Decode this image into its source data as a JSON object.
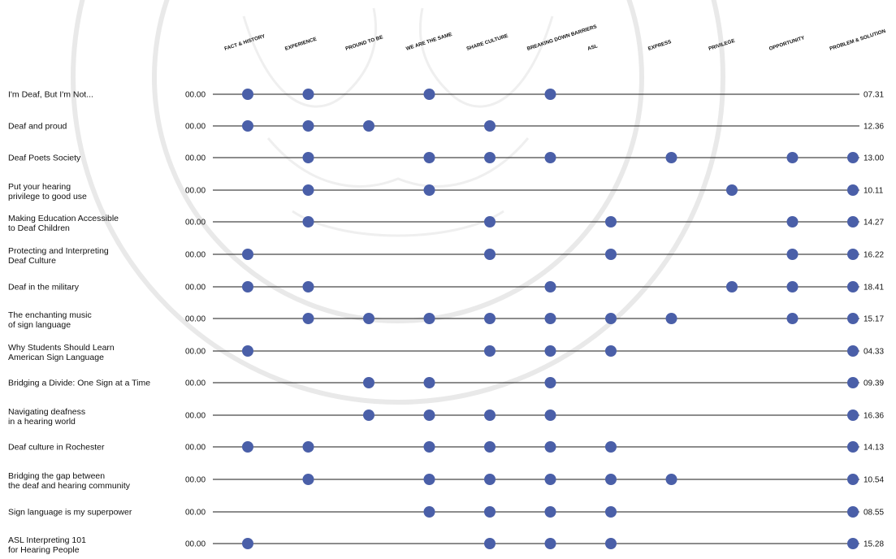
{
  "chart_data": {
    "type": "scatter",
    "columns": [
      "FACT & HISTORY",
      "EXPERIENCE",
      "PROUND TO BE",
      "WE ARE THE SAME",
      "SHARE CULTURE",
      "BREAKING DOWN BARRIERS",
      "ASL",
      "EXPRESS",
      "PRIVILEGE",
      "OPPORTUNITY",
      "PROBLEM & SOLUTION"
    ],
    "start_value": "00.00",
    "marker_color": "#4a5fa8",
    "rows": [
      {
        "title": [
          "I'm Deaf, But I'm Not..."
        ],
        "end": "07.31",
        "points": [
          0,
          1,
          3,
          5
        ]
      },
      {
        "title": [
          "Deaf and proud"
        ],
        "end": "12.36",
        "points": [
          0,
          1,
          2,
          4
        ]
      },
      {
        "title": [
          "Deaf Poets Society"
        ],
        "end": "13.00",
        "points": [
          1,
          3,
          4,
          5,
          7,
          9,
          10
        ]
      },
      {
        "title": [
          "Put your hearing",
          "privilege to good use"
        ],
        "end": "10.11",
        "points": [
          1,
          3,
          8,
          10
        ]
      },
      {
        "title": [
          "Making Education Accessible",
          "to Deaf Children"
        ],
        "end": "14.27",
        "points": [
          1,
          4,
          6,
          9,
          10
        ]
      },
      {
        "title": [
          "Protecting and Interpreting",
          "Deaf Culture"
        ],
        "end": "16.22",
        "points": [
          0,
          4,
          6,
          9,
          10
        ]
      },
      {
        "title": [
          "Deaf in the military"
        ],
        "end": "18.41",
        "points": [
          0,
          1,
          5,
          8,
          9,
          10
        ]
      },
      {
        "title": [
          "The enchanting music",
          "of sign language"
        ],
        "end": "15.17",
        "points": [
          1,
          2,
          3,
          4,
          5,
          6,
          7,
          9,
          10
        ]
      },
      {
        "title": [
          "Why Students Should Learn",
          "American Sign Language"
        ],
        "end": "04.33",
        "points": [
          0,
          4,
          5,
          6,
          10
        ]
      },
      {
        "title": [
          "Bridging a Divide: One Sign at a Time"
        ],
        "end": "09.39",
        "points": [
          2,
          3,
          5,
          10
        ]
      },
      {
        "title": [
          "Navigating deafness",
          "in a hearing world"
        ],
        "end": "16.36",
        "points": [
          2,
          3,
          4,
          5,
          10
        ]
      },
      {
        "title": [
          "Deaf culture in Rochester"
        ],
        "end": "14.13",
        "points": [
          0,
          1,
          3,
          4,
          5,
          6,
          10
        ]
      },
      {
        "title": [
          "Bridging the gap between",
          "the deaf and hearing community"
        ],
        "end": "10.54",
        "points": [
          1,
          3,
          4,
          5,
          6,
          7,
          10
        ]
      },
      {
        "title": [
          "Sign language is my superpower"
        ],
        "end": "08.55",
        "points": [
          3,
          4,
          5,
          6,
          10
        ]
      },
      {
        "title": [
          "ASL Interpreting 101",
          "for Hearing People"
        ],
        "end": "15.28",
        "points": [
          0,
          4,
          5,
          6,
          10
        ]
      }
    ]
  }
}
